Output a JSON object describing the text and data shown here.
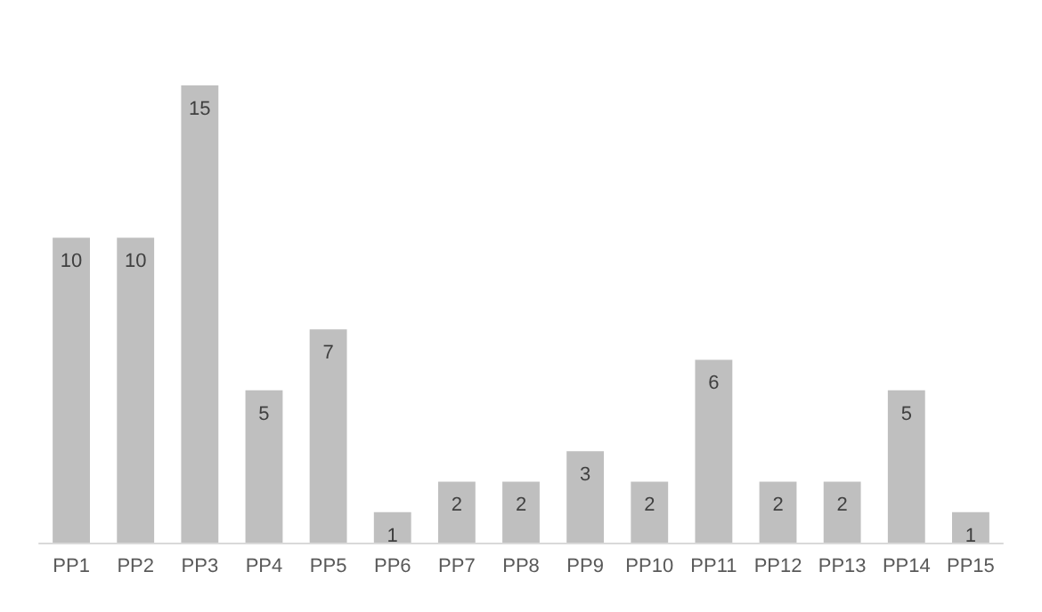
{
  "chart_data": {
    "type": "bar",
    "categories": [
      "PP1",
      "PP2",
      "PP3",
      "PP4",
      "PP5",
      "PP6",
      "PP7",
      "PP8",
      "PP9",
      "PP10",
      "PP11",
      "PP12",
      "PP13",
      "PP14",
      "PP15"
    ],
    "values": [
      10,
      10,
      15,
      5,
      7,
      1,
      2,
      2,
      3,
      2,
      6,
      2,
      2,
      5,
      1
    ],
    "color": "#bfbfbf",
    "data_labels": true
  }
}
